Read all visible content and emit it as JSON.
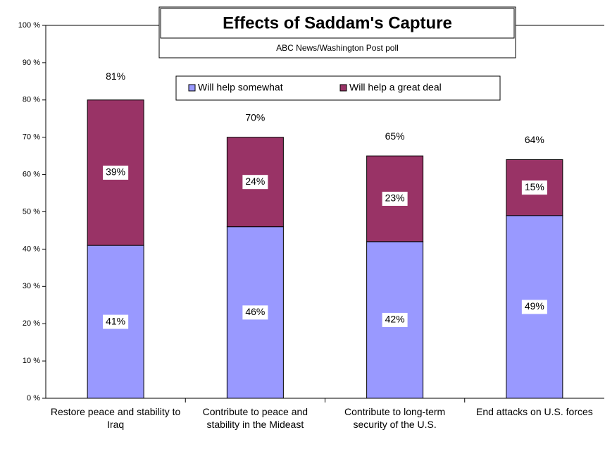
{
  "chart_data": {
    "type": "stacked_bar",
    "title": "Effects of Saddam's Capture",
    "subtitle": "ABC News/Washington Post poll",
    "categories": [
      "Restore peace and stability to Iraq",
      "Contribute to peace and stability in the Mideast",
      "Contribute to long-term security of the U.S.",
      "End attacks on U.S. forces"
    ],
    "series": [
      {
        "name": "Will help somewhat",
        "color": "#9999ff",
        "values": [
          41,
          46,
          42,
          49
        ],
        "value_labels": [
          "41%",
          "46%",
          "42%",
          "49%"
        ]
      },
      {
        "name": "Will help a great deal",
        "color": "#993366",
        "values": [
          39,
          24,
          23,
          15
        ],
        "value_labels": [
          "39%",
          "24%",
          "23%",
          "15%"
        ]
      }
    ],
    "totals": [
      81,
      70,
      65,
      64
    ],
    "total_labels": [
      "81%",
      "70%",
      "65%",
      "64%"
    ],
    "ylim": [
      0,
      100
    ],
    "yticks": [
      {
        "value": 0,
        "label": "0 %"
      },
      {
        "value": 10,
        "label": "10 %"
      },
      {
        "value": 20,
        "label": "20 %"
      },
      {
        "value": 30,
        "label": "30 %"
      },
      {
        "value": 40,
        "label": "40 %"
      },
      {
        "value": 50,
        "label": "50 %"
      },
      {
        "value": 60,
        "label": "60 %"
      },
      {
        "value": 70,
        "label": "70 %"
      },
      {
        "value": 80,
        "label": "80 %"
      },
      {
        "value": 90,
        "label": "90 %"
      },
      {
        "value": 100,
        "label": "100 %"
      }
    ],
    "legend": "top"
  }
}
